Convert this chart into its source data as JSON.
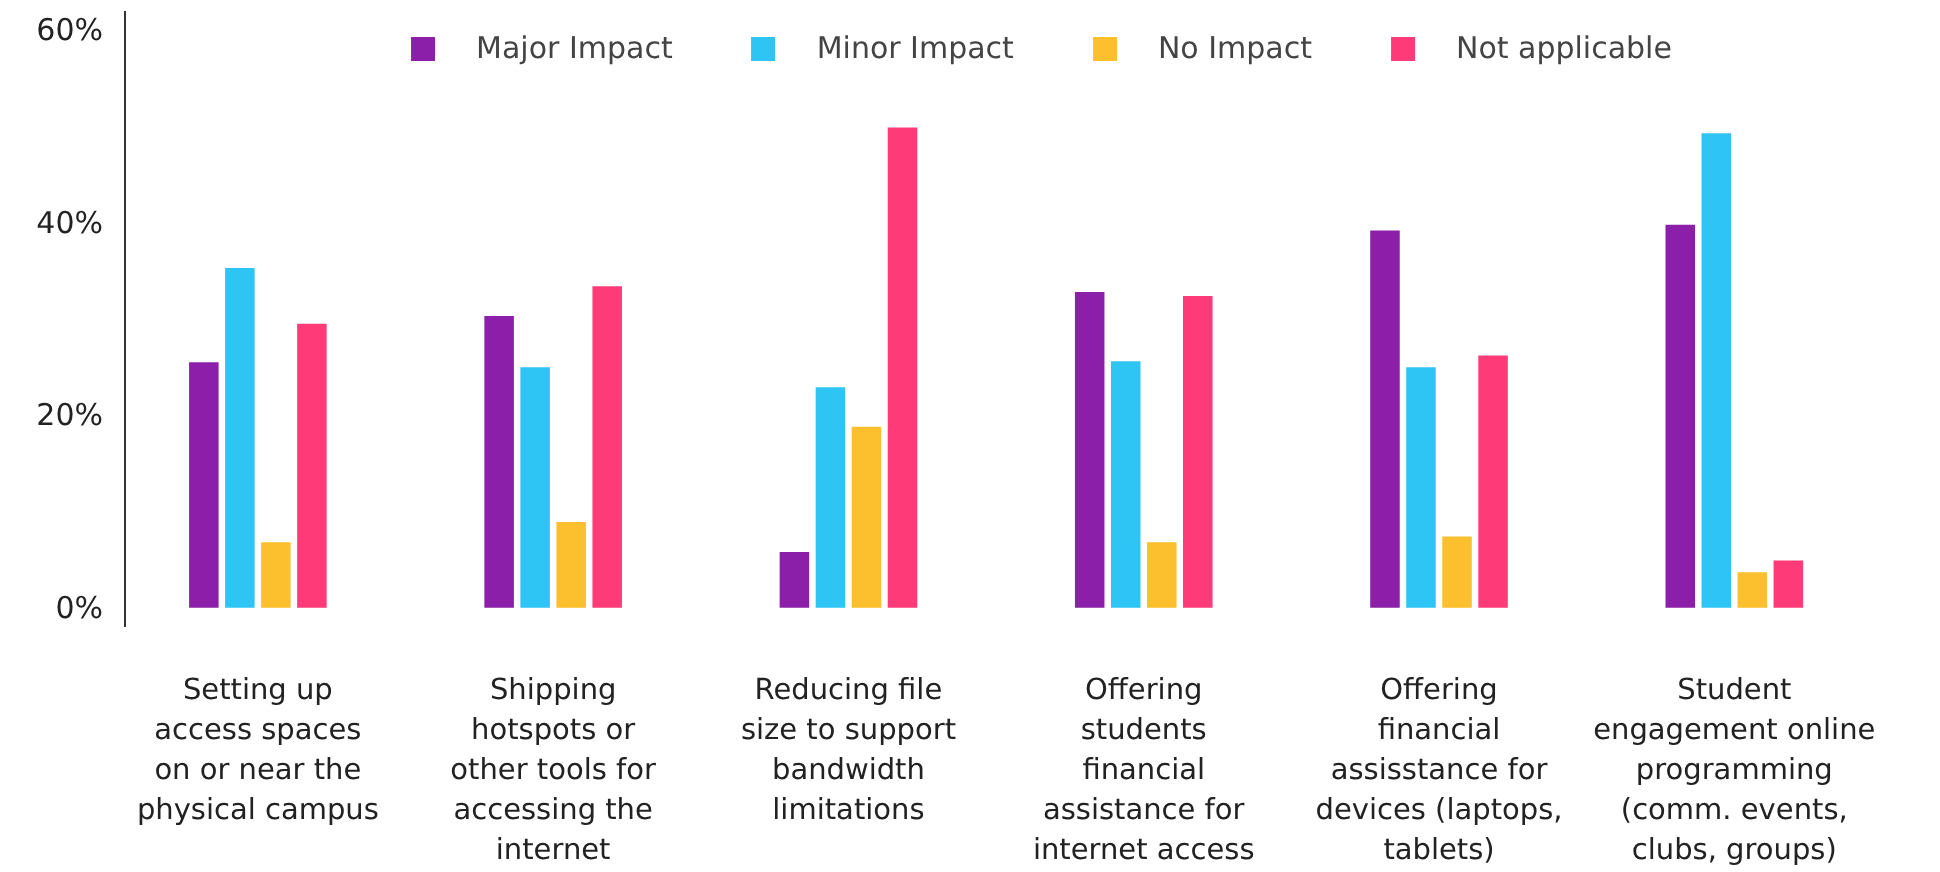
{
  "chart_data": {
    "type": "bar",
    "categories": [
      "Setting up\naccess spaces\non or near the\nphysical campus",
      "Shipping\nhotspots or\nother tools for\naccessing the\ninternet",
      "Reducing file\nsize to support\nbandwidth\nlimitations",
      "Offering\nstudents\nfinancial\nassistance for\ninternet access",
      "Offering\nfinancial\nassisstance for\ndevices (laptops,\ntablets)",
      "Student\nengagement online\nprogramming\n(comm. events,\nclubs, groups)"
    ],
    "series": [
      {
        "name": "Major Impact",
        "color": "#8b1fa9",
        "values": [
          25.5,
          30.3,
          5.8,
          32.8,
          39.2,
          39.8
        ]
      },
      {
        "name": "Minor Impact",
        "color": "#2ec4f3",
        "values": [
          35.3,
          25,
          22.9,
          25.6,
          25,
          49.3
        ]
      },
      {
        "name": "No Impact",
        "color": "#fcbf2d",
        "values": [
          6.8,
          8.9,
          18.8,
          6.8,
          7.4,
          3.7
        ]
      },
      {
        "name": "Not applicable",
        "color": "#fe3b78",
        "values": [
          29.5,
          33.4,
          49.9,
          32.4,
          26.2,
          4.9
        ]
      }
    ],
    "ylim": [
      -2,
      62
    ],
    "yticks": [
      {
        "value": 0,
        "label": "0%"
      },
      {
        "value": 20,
        "label": "20%"
      },
      {
        "value": 40,
        "label": "40%"
      },
      {
        "value": 60,
        "label": "60%"
      }
    ],
    "grid": false,
    "legend": "top"
  }
}
